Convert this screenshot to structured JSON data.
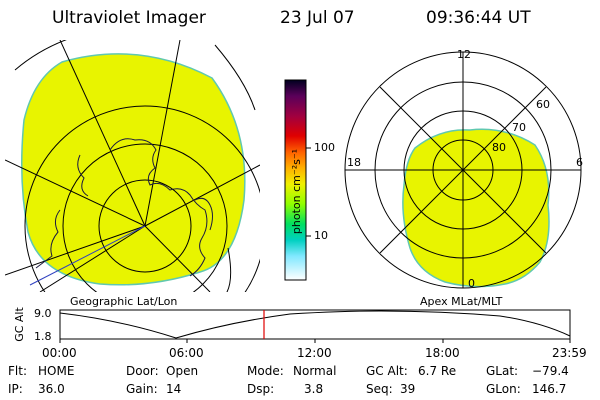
{
  "header": {
    "title": "Ultraviolet Imager",
    "date": "23 Jul 07",
    "time": "09:36:44 UT"
  },
  "colorbar": {
    "label": "photon cm⁻²s⁻¹",
    "ticks": [
      "100",
      "10"
    ],
    "colors": [
      "#000000",
      "#5a005a",
      "#7a0070",
      "#b00030",
      "#e00000",
      "#ff4000",
      "#ff8000",
      "#ffb000",
      "#ffe000",
      "#e0ff00",
      "#80ff00",
      "#00e040",
      "#00d0a0",
      "#00c8e0",
      "#80e8ff",
      "#ffffff"
    ]
  },
  "left_panel": {
    "caption": "Geographic Lat/Lon"
  },
  "right_panel": {
    "caption": "Apex MLat/MLT",
    "mlt_labels": {
      "top": "12",
      "left": "18",
      "right": "6",
      "bottom": "0"
    },
    "lat_labels": [
      "60",
      "70",
      "80"
    ],
    "fill_color": "#e8f400",
    "edge_color": "#60c8b0"
  },
  "altitude_plot": {
    "ylabel": "GC Alt",
    "yticks": [
      "9.0",
      "1.8"
    ],
    "xticks": [
      "00:00",
      "06:00",
      "12:00",
      "18:00",
      "23:59"
    ],
    "current_time_marker_color": "#e00000"
  },
  "info": {
    "flt": {
      "label": "Flt:",
      "value": "HOME"
    },
    "ip": {
      "label": "IP:",
      "value": "36.0"
    },
    "door": {
      "label": "Door:",
      "value": "Open"
    },
    "gain": {
      "label": "Gain:",
      "value": "14"
    },
    "mode": {
      "label": "Mode:",
      "value": "Normal"
    },
    "dsp": {
      "label": "Dsp:",
      "value": "3.8"
    },
    "gcalt": {
      "label": "GC Alt:",
      "value": "6.7 Re"
    },
    "seq": {
      "label": "Seq:",
      "value": "39"
    },
    "glat": {
      "label": "GLat:",
      "value": "−79.4"
    },
    "glon": {
      "label": "GLon:",
      "value": "146.7"
    }
  }
}
